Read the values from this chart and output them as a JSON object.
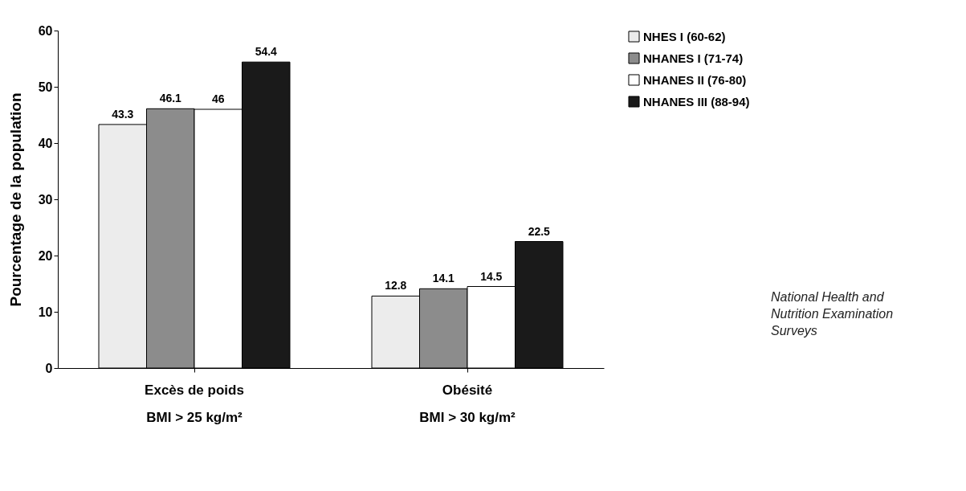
{
  "chart_data": {
    "type": "bar",
    "ylabel": "Pourcentage de la population",
    "categories": [
      "Excès de poids\nBMI > 25 kg/m²",
      "Obésité\nBMI > 30 kg/m²"
    ],
    "series": [
      {
        "name": "NHES I (60-62)",
        "color": "#ececec",
        "values": [
          43.3,
          12.8
        ]
      },
      {
        "name": "NHANES I (71-74)",
        "color": "#8c8c8c",
        "values": [
          46.1,
          14.1
        ]
      },
      {
        "name": "NHANES II (76-80)",
        "color": "#ffffff",
        "values": [
          46,
          14.5
        ]
      },
      {
        "name": "NHANES III (88-94)",
        "color": "#1a1a1a",
        "values": [
          54.4,
          22.5
        ]
      }
    ],
    "ylim": [
      0,
      60
    ],
    "yticks": [
      0,
      10,
      20,
      30,
      40,
      50,
      60
    ],
    "grid": false,
    "legend": "right",
    "data_labels": true,
    "annotations": [
      "National Health and Nutrition Examination Surveys"
    ]
  }
}
